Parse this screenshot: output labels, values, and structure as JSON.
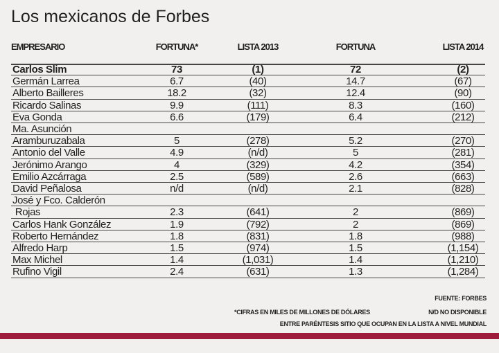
{
  "title": "Los mexicanos de Forbes",
  "table": {
    "headers": [
      "EMPRESARIO",
      "FORTUNA*",
      "LISTA 2013",
      "FORTUNA",
      "LISTA 2014"
    ],
    "rows": [
      [
        "Carlos Slim",
        "73",
        "(1)",
        "72",
        "(2)"
      ],
      [
        "Germán Larrea",
        "6.7",
        "(40)",
        "14.7",
        "(67)"
      ],
      [
        "Alberto Bailleres",
        "18.2",
        "(32)",
        "12.4",
        "(90)"
      ],
      [
        "Ricardo Salinas",
        "9.9",
        "(111)",
        "8.3",
        "(160)"
      ],
      [
        "Eva Gonda",
        "6.6",
        "(179)",
        "6.4",
        "(212)"
      ],
      [
        "Ma. Asunción"
      ],
      [
        "Aramburuzabala",
        "5",
        "(278)",
        "5.2",
        "(270)"
      ],
      [
        "Antonio del Valle",
        "4.9",
        "(n/d)",
        "5",
        "(281)"
      ],
      [
        "Jerónimo Arango",
        "4",
        "(329)",
        "4.2",
        "(354)"
      ],
      [
        "Emilio Azcárraga",
        "2.5",
        "(589)",
        "2.6",
        "(663)"
      ],
      [
        "David Peñalosa",
        "n/d",
        "(n/d)",
        "2.1",
        "(828)"
      ],
      [
        "José y Fco. Calderón"
      ],
      [
        " Rojas",
        "2.3",
        "(641)",
        "2",
        "(869)"
      ],
      [
        "Carlos Hank González",
        "1.9",
        "(792)",
        "2",
        "(869)"
      ],
      [
        "Roberto Hernández",
        "1.8",
        "(831)",
        "1.8",
        "(988)"
      ],
      [
        "Alfredo Harp",
        "1.5",
        "(974)",
        "1.5",
        "(1,154)"
      ],
      [
        "Max Michel",
        "1.4",
        "(1,031)",
        "1.4",
        "(1,210)"
      ],
      [
        "Rufino Vigil",
        "2.4",
        "(631)",
        "1.3",
        "(1,284)"
      ]
    ]
  },
  "notes": {
    "source": "FUENTE: FORBES",
    "figures": "*CIFRAS EN MILES DE MILLONES DE DÓLARES",
    "nd": "N/D NO DISPONIBLE",
    "parentheses": "ENTRE PARÉNTESIS SITIO QUE OCUPAN EN LA LISTA A NIVEL MUNDIAL"
  }
}
